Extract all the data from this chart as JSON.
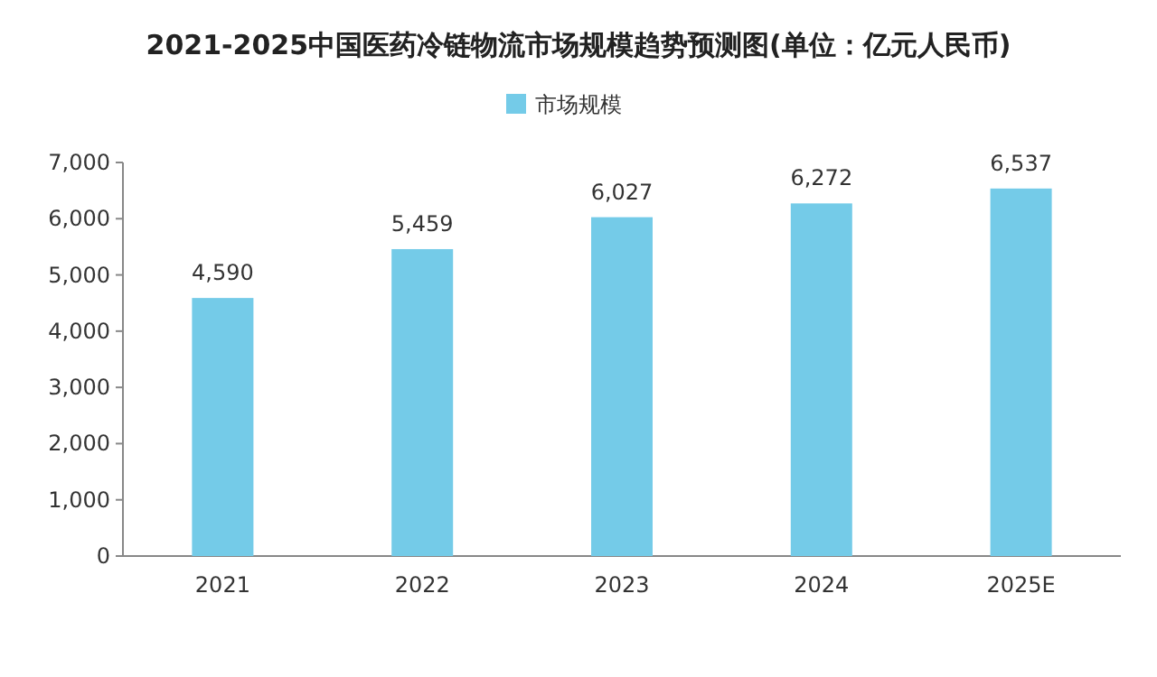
{
  "chart_data": {
    "type": "bar",
    "title": "2021-2025中国医药冷链物流市场规模趋势预测图(单位：亿元人民币)",
    "categories": [
      "2021",
      "2022",
      "2023",
      "2024",
      "2025E"
    ],
    "series": [
      {
        "name": "市场规模",
        "color": "#74cbe8",
        "values": [
          4590,
          5459,
          6027,
          6272,
          6537
        ],
        "value_labels": [
          "4,590",
          "5,459",
          "6,027",
          "6,272",
          "6,537"
        ]
      }
    ],
    "ylim": [
      0,
      7000
    ],
    "yticks": [
      0,
      {
        "value": 1000,
        "label": "1,000"
      },
      {
        "value": 2000,
        "label": "2,000"
      },
      {
        "value": 3000,
        "label": "3,000"
      },
      {
        "value": 4000,
        "label": "4,000"
      },
      {
        "value": 5000,
        "label": "5,000"
      },
      {
        "value": 6000,
        "label": "6,000"
      },
      {
        "value": 7000,
        "label": "7,000"
      }
    ],
    "legend": "top"
  }
}
